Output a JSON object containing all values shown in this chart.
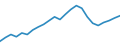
{
  "x": [
    0,
    1,
    2,
    3,
    4,
    5,
    6,
    7,
    8,
    9,
    10,
    11,
    12,
    13,
    14,
    15,
    16,
    17,
    18,
    19,
    20,
    21,
    22
  ],
  "y": [
    1,
    2,
    2.8,
    2.2,
    3.2,
    2.8,
    4,
    4.8,
    5.5,
    6.5,
    7.5,
    6.8,
    8.2,
    9.5,
    10.5,
    9.8,
    7.5,
    5.8,
    5.2,
    6.0,
    6.5,
    7.2,
    7.8
  ],
  "line_color": "#2e8bc0",
  "linewidth": 1.2,
  "ylim": [
    0,
    12
  ],
  "xlim": [
    0,
    22
  ],
  "background_color": "#ffffff"
}
